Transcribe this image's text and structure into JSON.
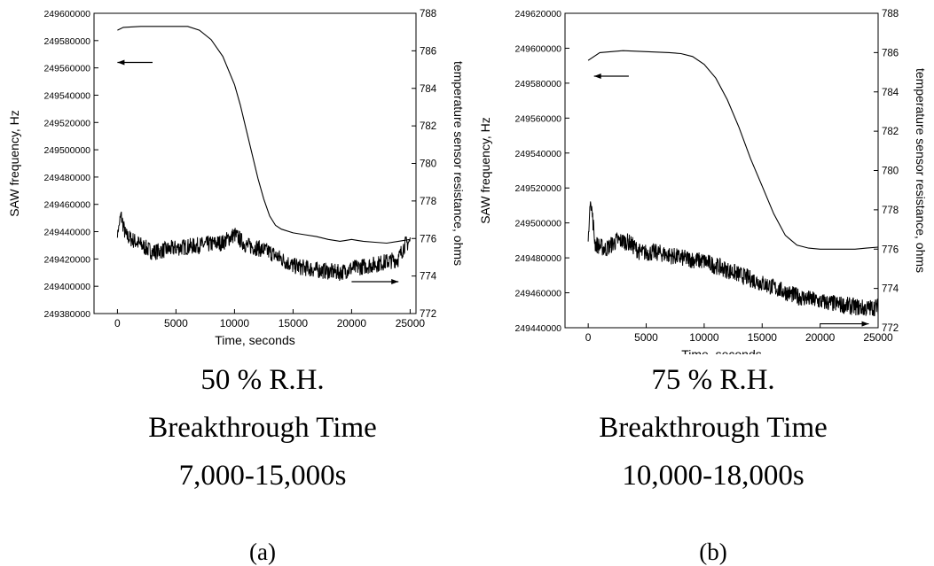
{
  "chart_data": [
    {
      "type": "line",
      "xlabel": "Time, seconds",
      "ylabel": "SAW frequency, Hz",
      "y2label": "temperature sensor resistance, ohms",
      "xlim": [
        -2000,
        25500
      ],
      "ylim": [
        249380000,
        249600000
      ],
      "y2lim": [
        772,
        788
      ],
      "xticks": [
        "0",
        "5000",
        "10000",
        "15000",
        "20000",
        "25000"
      ],
      "yticks": [
        "249380000",
        "249400000",
        "249420000",
        "249440000",
        "249460000",
        "249480000",
        "249500000",
        "249520000",
        "249540000",
        "249560000",
        "249580000",
        "249600000"
      ],
      "y2ticks": [
        "772",
        "774",
        "776",
        "778",
        "780",
        "782",
        "784",
        "786",
        "788"
      ],
      "grid": false,
      "arrows": [
        {
          "axis": "left",
          "x_from": 3000,
          "x_to": 0,
          "y": 249564000
        },
        {
          "axis": "right",
          "x_from": 20000,
          "x_to": 24000,
          "y": 773.7
        }
      ],
      "series": [
        {
          "axis": "right",
          "style": "thin",
          "x": [
            0,
            500,
            2000,
            4000,
            6000,
            7000,
            8000,
            9000,
            10000,
            10500,
            11000,
            11500,
            12000,
            12500,
            13000,
            13500,
            14000,
            15000,
            16000,
            17000,
            18000,
            19000,
            19500,
            20000,
            20500,
            21000,
            22000,
            23000,
            24000,
            25000
          ],
          "y": [
            787.1,
            787.25,
            787.3,
            787.3,
            787.3,
            787.1,
            786.6,
            785.7,
            784.2,
            783.1,
            781.8,
            780.5,
            779.2,
            778.1,
            777.2,
            776.7,
            776.5,
            776.3,
            776.2,
            776.1,
            775.95,
            775.85,
            775.9,
            775.95,
            775.9,
            775.85,
            775.8,
            775.75,
            775.85,
            775.95
          ]
        },
        {
          "axis": "left",
          "style": "noisy",
          "x": [
            0,
            300,
            700,
            1500,
            3000,
            5000,
            7000,
            9000,
            10000,
            11000,
            12000,
            13000,
            15000,
            17000,
            19000,
            20000,
            22000,
            23000,
            24000,
            24500,
            25000
          ],
          "y": [
            249438000,
            249452000,
            249437000,
            249433000,
            249425000,
            249428000,
            249430000,
            249432000,
            249438000,
            249430000,
            249428000,
            249425000,
            249415000,
            249412000,
            249410000,
            249413000,
            249416000,
            249418000,
            249420000,
            249430000,
            249433000
          ]
        }
      ]
    },
    {
      "type": "line",
      "xlabel": "Time, seconds",
      "ylabel": "SAW frequency, Hz",
      "y2label": "temperature sensor resistance, ohms",
      "xlim": [
        -2000,
        25000
      ],
      "ylim": [
        249440000,
        249620000
      ],
      "y2lim": [
        772,
        788
      ],
      "xticks": [
        "0",
        "5000",
        "10000",
        "15000",
        "20000",
        "25000"
      ],
      "yticks": [
        "249440000",
        "249460000",
        "249480000",
        "249500000",
        "249520000",
        "249540000",
        "249560000",
        "249580000",
        "249600000",
        "249620000"
      ],
      "y2ticks": [
        "772",
        "774",
        "776",
        "778",
        "780",
        "782",
        "784",
        "786",
        "788"
      ],
      "grid": false,
      "arrows": [
        {
          "axis": "left",
          "x_from": 3500,
          "x_to": 500,
          "y": 249584000
        },
        {
          "axis": "right",
          "x_from": 20000,
          "x_to": 24200,
          "y": 772.2
        }
      ],
      "series": [
        {
          "axis": "right",
          "style": "thin",
          "x": [
            0,
            1000,
            3000,
            5000,
            7000,
            8000,
            9000,
            10000,
            11000,
            12000,
            13000,
            14000,
            15000,
            16000,
            17000,
            18000,
            19000,
            20000,
            21000,
            22000,
            23000,
            24000,
            25000
          ],
          "y": [
            785.6,
            786.0,
            786.1,
            786.05,
            786.0,
            785.95,
            785.8,
            785.4,
            784.7,
            783.6,
            782.2,
            780.6,
            779.2,
            777.8,
            776.7,
            776.2,
            776.05,
            776.0,
            776.0,
            776.0,
            776.0,
            776.05,
            776.1
          ]
        },
        {
          "axis": "left",
          "style": "noisy",
          "x": [
            0,
            200,
            600,
            1500,
            2500,
            3500,
            4500,
            6000,
            8000,
            10000,
            12000,
            14000,
            16000,
            18000,
            20000,
            22000,
            24000,
            25000
          ],
          "y": [
            249490000,
            249515000,
            249488000,
            249485000,
            249490000,
            249489000,
            249483000,
            249483000,
            249480000,
            249478000,
            249473000,
            249468000,
            249463000,
            249458000,
            249455000,
            249453000,
            249451000,
            249452000
          ]
        }
      ]
    }
  ],
  "captions": [
    {
      "line1": "50 % R.H.",
      "line2": "Breakthrough Time",
      "line3": "7,000-15,000s",
      "label": "(a)"
    },
    {
      "line1": "75 % R.H.",
      "line2": "Breakthrough Time",
      "line3": "10,000-18,000s",
      "label": "(b)"
    }
  ]
}
